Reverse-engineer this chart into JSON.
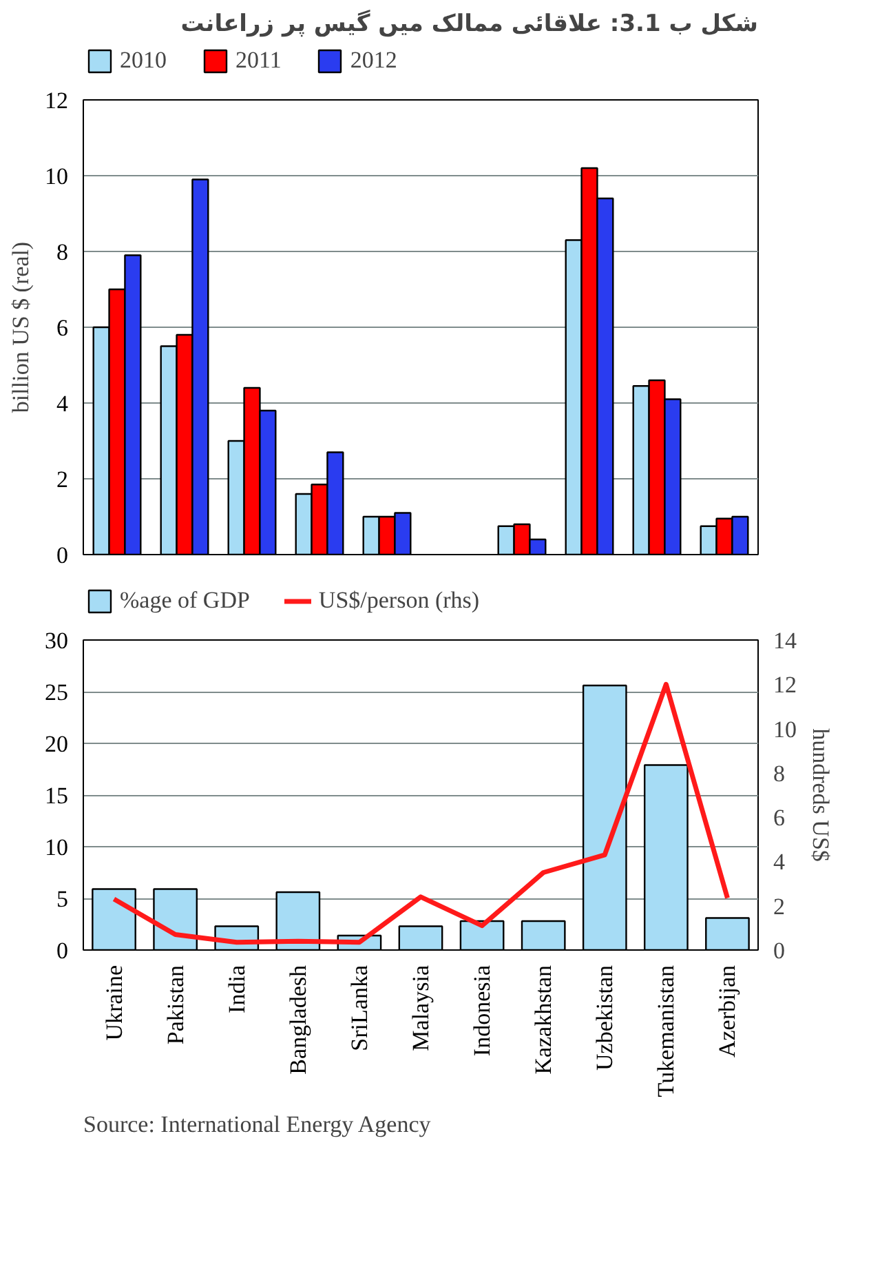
{
  "chart_data": [
    {
      "type": "bar",
      "title": "شکل ب 3.1: علاقائی ممالک میں گیس پر زراعانت",
      "ylabel": "billion US $ (real)",
      "categories": [
        null,
        null,
        null,
        null,
        null,
        null,
        null,
        null,
        null,
        null
      ],
      "series": [
        {
          "name": "2010",
          "color": "#a6dcf5",
          "values": [
            6.0,
            5.5,
            3.0,
            1.6,
            1.0,
            null,
            0.75,
            8.3,
            4.45,
            0.75
          ]
        },
        {
          "name": "2011",
          "color": "#ff0000",
          "values": [
            7.0,
            5.8,
            4.4,
            1.85,
            1.0,
            null,
            0.8,
            10.2,
            4.6,
            0.95
          ]
        },
        {
          "name": "2012",
          "color": "#2a3cf0",
          "values": [
            7.9,
            9.9,
            3.8,
            2.7,
            1.1,
            null,
            0.4,
            9.4,
            4.1,
            1.0
          ]
        }
      ],
      "ylim": [
        0,
        12
      ],
      "yticks": [
        0,
        2,
        4,
        6,
        8,
        10,
        12
      ],
      "grid": "y",
      "legend": "top"
    },
    {
      "type": "bar",
      "y2label": "hundreds US$",
      "categories": [
        "Ukraine",
        "Pakistan",
        "India",
        "Bangladesh",
        "SriLanka",
        "Malaysia",
        "Indonesia",
        "Kazakhstan",
        "Uzbekistan",
        "Tukemanistan",
        "Azerbijan"
      ],
      "series": [
        {
          "name": "%age of GDP",
          "color": "#a6dcf5",
          "values": [
            5.9,
            5.9,
            2.3,
            5.6,
            1.4,
            2.3,
            2.8,
            2.8,
            25.6,
            17.9,
            3.1
          ]
        },
        {
          "name": "US$/person (rhs)",
          "type": "line",
          "axis": "y2",
          "color": "#ff1a1a",
          "values": [
            2.3,
            0.7,
            0.35,
            0.4,
            0.35,
            2.4,
            1.1,
            3.5,
            4.3,
            12.0,
            2.35
          ]
        }
      ],
      "ylim": [
        0,
        30
      ],
      "yticks": [
        0,
        5,
        10,
        15,
        20,
        25,
        30
      ],
      "y2lim": [
        0,
        14
      ],
      "y2ticks": [
        0,
        2,
        4,
        6,
        8,
        10,
        12,
        14
      ],
      "grid": "y",
      "legend": "top",
      "annotations": [
        "Source: International  Energy Agency"
      ]
    }
  ]
}
